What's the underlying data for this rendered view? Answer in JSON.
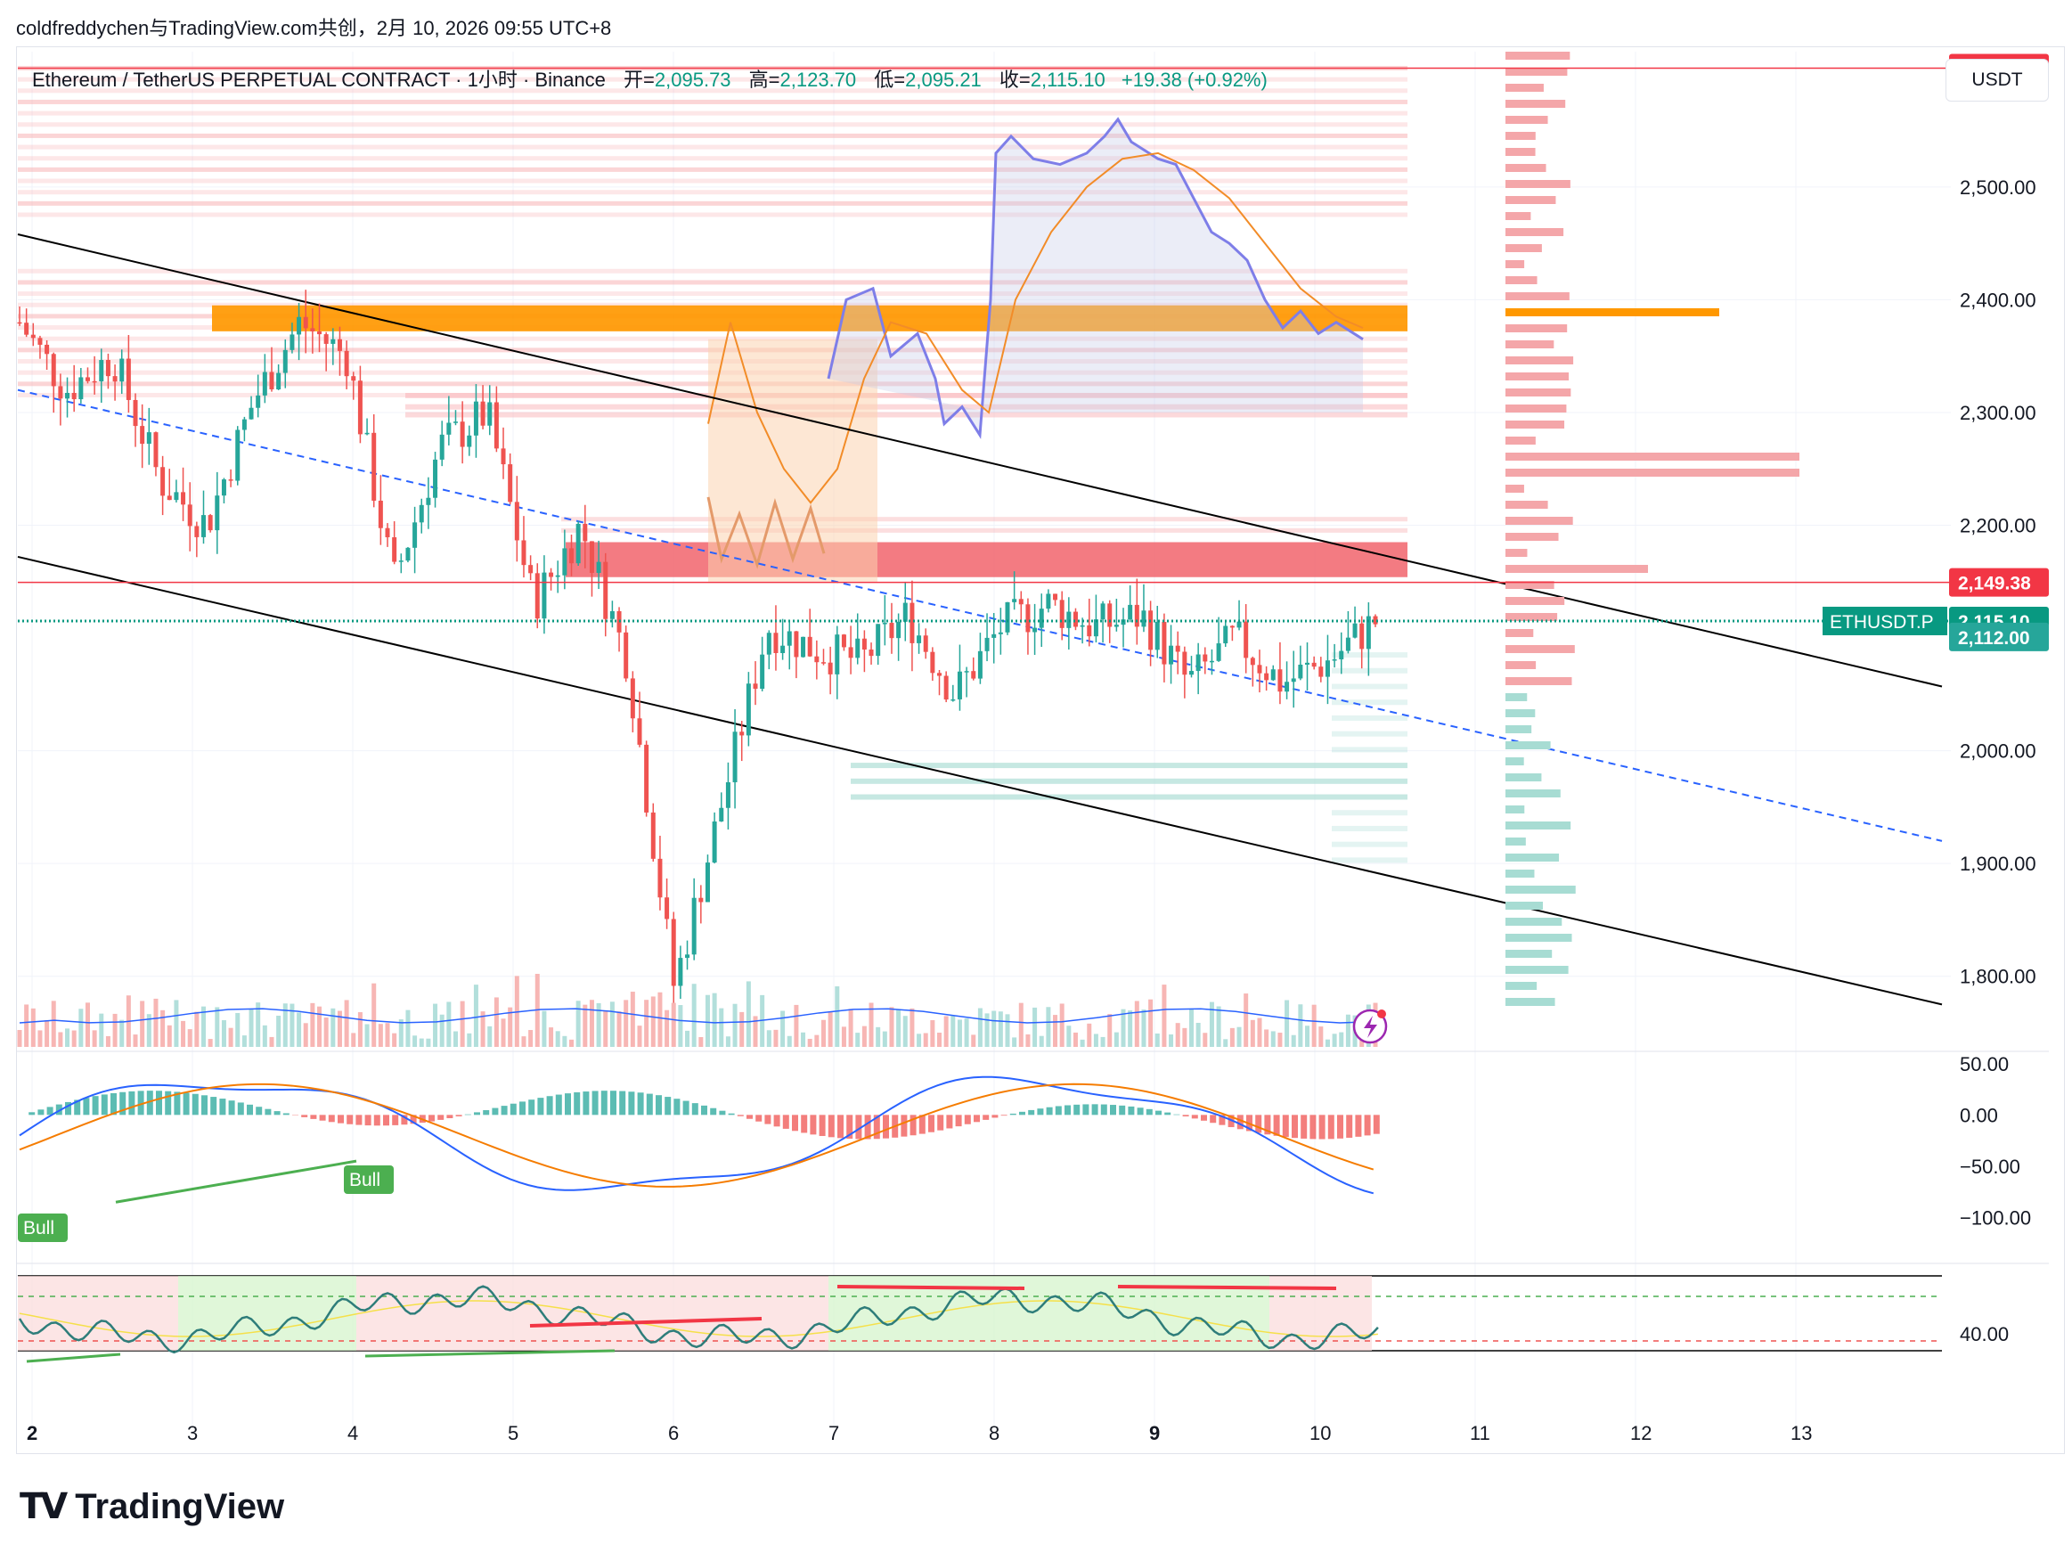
{
  "share_line": "coldfreddychen与TradingView.com共创，2月 10, 2026 09:55 UTC+8",
  "legend": {
    "symbol": "Ethereum / TetherUS PERPETUAL CONTRACT · 1小时 · Binance",
    "open_label": "开=",
    "open_value": "2,095.73",
    "high_label": "高=",
    "high_value": "2,123.70",
    "low_label": "低=",
    "low_value": "2,095.21",
    "close_label": "收=",
    "close_value": "2,115.10",
    "change": "+19.38 (+0.92%)"
  },
  "currency_button": "USDT",
  "brand": "TradingView",
  "colors": {
    "up": "#26a69a",
    "down": "#ef5350",
    "accent_orange": "#ff9800",
    "resistance": "#f23645",
    "support_zone": "#80cbc4"
  },
  "chart_data": {
    "type": "candlestick",
    "symbol": "ETHUSDT.P",
    "timeframe": "1小时",
    "x_ticks": [
      "2",
      "3",
      "4",
      "5",
      "6",
      "7",
      "8",
      "9",
      "10",
      "11",
      "12",
      "13"
    ],
    "price_axis": {
      "ticks": [
        "2,500.00",
        "2,400.00",
        "2,300.00",
        "2,200.00",
        "2,000.00",
        "1,900.00",
        "1,800.00"
      ],
      "range": [
        1735,
        2620
      ]
    },
    "price_labels": [
      {
        "value": "2,605.41",
        "kind": "resistance"
      },
      {
        "value": "2,149.38",
        "kind": "resistance"
      },
      {
        "value": "2,115.10",
        "kind": "last",
        "ticker": "ETHUSDT.P"
      },
      {
        "value": "2,112.00",
        "kind": "level"
      }
    ],
    "price_anchor_values": [
      2380,
      2320,
      2350,
      2240,
      2200,
      2310,
      2380,
      2350,
      2150,
      2270,
      2300,
      2130,
      2200,
      2080,
      1790,
      1950,
      2110,
      2090,
      2080,
      2120,
      2050,
      2110,
      2130,
      2110,
      2120,
      2060,
      2100,
      2060,
      2080,
      2115
    ],
    "orange_zone": [
      2372,
      2395
    ],
    "red_zone": [
      2154,
      2185
    ],
    "macd": {
      "ticks": [
        "50.00",
        "0.00",
        "−50.00",
        "−100.00"
      ],
      "range": [
        -110,
        55
      ],
      "labels": [
        "Bull",
        "Bull"
      ]
    },
    "rsi": {
      "ticks": [
        "40.00"
      ]
    }
  }
}
